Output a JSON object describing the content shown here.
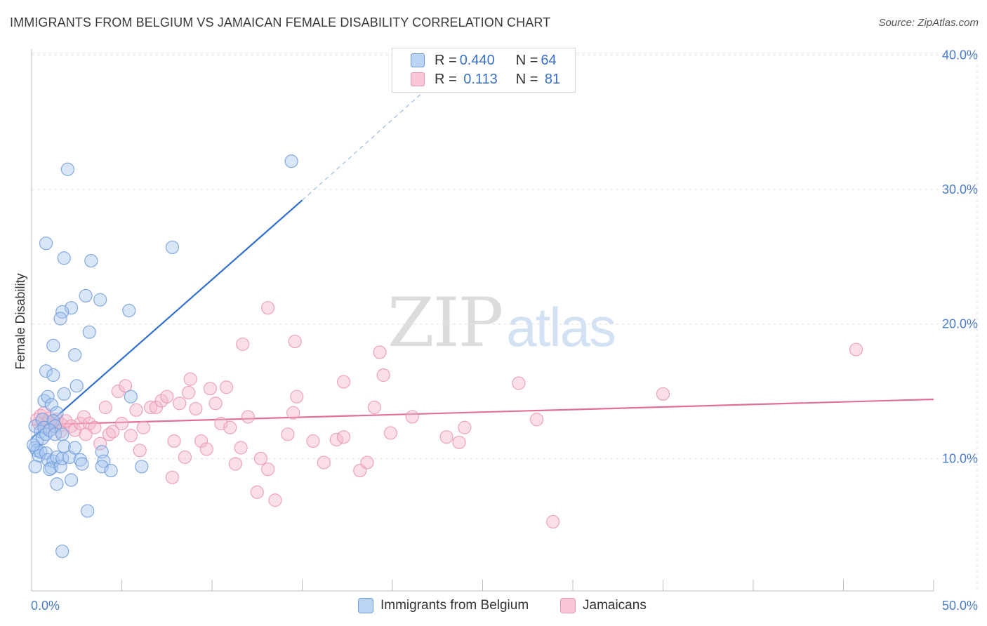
{
  "title": "IMMIGRANTS FROM BELGIUM VS JAMAICAN FEMALE DISABILITY CORRELATION CHART",
  "source": "Source: ZipAtlas.com",
  "watermark": {
    "zip": "ZIP",
    "atlas": "atlas"
  },
  "colors": {
    "blue": "#4a86d8",
    "blue_fill": "#a9c8f0",
    "pink": "#e0709a",
    "pink_fill": "#f5b9cc",
    "tick_text": "#4a7cc8",
    "grid": "#e3e3e3"
  },
  "legend": {
    "rows": [
      {
        "r_label": "R = ",
        "r_value": "0.440",
        "n_label": "N = ",
        "n_value": "64"
      },
      {
        "r_label": "R = ",
        "r_value": " 0.113",
        "n_label": "N = ",
        "n_value": " 81"
      }
    ]
  },
  "bottom_legend": [
    "Immigrants from Belgium",
    "Jamaicans"
  ],
  "chart_data": {
    "type": "scatter",
    "title": "IMMIGRANTS FROM BELGIUM VS JAMAICAN FEMALE DISABILITY CORRELATION CHART",
    "ylabel": "Female Disability",
    "xlabel": "",
    "xlim": [
      0,
      50
    ],
    "ylim": [
      0,
      42
    ],
    "x_tick_labels": [
      "0.0%",
      "50.0%"
    ],
    "y_ticks": [
      10,
      20,
      30,
      40
    ],
    "y_tick_labels": [
      "10.0%",
      "20.0%",
      "30.0%",
      "40.0%"
    ],
    "grid": true,
    "legend_position": "top-center",
    "series": [
      {
        "name": "Immigrants from Belgium",
        "color": "#4a86d8",
        "R": 0.44,
        "N": 64,
        "trend": {
          "x": [
            0.0,
            15.0
          ],
          "y": [
            11.5,
            29.2
          ],
          "dashed_to": [
            22.5,
            38.2
          ]
        },
        "points": [
          [
            0.2,
            12.4
          ],
          [
            0.3,
            11.3
          ],
          [
            0.2,
            10.8
          ],
          [
            0.3,
            10.6
          ],
          [
            0.4,
            10.2
          ],
          [
            0.2,
            9.4
          ],
          [
            0.5,
            12.0
          ],
          [
            0.6,
            12.9
          ],
          [
            0.7,
            12.3
          ],
          [
            0.6,
            11.5
          ],
          [
            0.8,
            11.8
          ],
          [
            0.5,
            10.5
          ],
          [
            0.8,
            10.4
          ],
          [
            0.9,
            9.9
          ],
          [
            0.7,
            14.3
          ],
          [
            0.9,
            14.6
          ],
          [
            1.1,
            14.0
          ],
          [
            1.4,
            13.4
          ],
          [
            1.2,
            12.8
          ],
          [
            1.3,
            12.4
          ],
          [
            1.0,
            12.1
          ],
          [
            1.3,
            11.8
          ],
          [
            1.1,
            9.3
          ],
          [
            1.2,
            9.8
          ],
          [
            1.0,
            9.2
          ],
          [
            1.4,
            10.1
          ],
          [
            1.6,
            9.4
          ],
          [
            1.7,
            10.0
          ],
          [
            1.7,
            11.8
          ],
          [
            1.4,
            8.1
          ],
          [
            1.8,
            10.9
          ],
          [
            2.1,
            10.1
          ],
          [
            2.2,
            8.4
          ],
          [
            2.4,
            10.8
          ],
          [
            2.7,
            9.9
          ],
          [
            2.8,
            9.6
          ],
          [
            3.1,
            6.1
          ],
          [
            1.7,
            3.1
          ],
          [
            0.8,
            26.0
          ],
          [
            1.8,
            24.9
          ],
          [
            2.0,
            31.5
          ],
          [
            3.3,
            24.7
          ],
          [
            3.0,
            22.1
          ],
          [
            3.8,
            21.8
          ],
          [
            2.2,
            21.2
          ],
          [
            1.7,
            20.9
          ],
          [
            1.6,
            20.4
          ],
          [
            3.2,
            19.4
          ],
          [
            1.2,
            18.4
          ],
          [
            2.4,
            17.7
          ],
          [
            0.8,
            16.5
          ],
          [
            1.2,
            16.2
          ],
          [
            2.5,
            15.4
          ],
          [
            1.8,
            14.8
          ],
          [
            3.9,
            10.5
          ],
          [
            4.0,
            9.8
          ],
          [
            3.9,
            9.4
          ],
          [
            4.4,
            9.1
          ],
          [
            5.5,
            14.6
          ],
          [
            6.1,
            9.4
          ],
          [
            5.4,
            21.0
          ],
          [
            7.8,
            25.7
          ],
          [
            14.4,
            32.1
          ],
          [
            0.1,
            11.0
          ]
        ]
      },
      {
        "name": "Jamaicans",
        "color": "#e0709a",
        "R": 0.113,
        "N": 81,
        "trend": {
          "x": [
            0.0,
            50.0
          ],
          "y": [
            12.5,
            14.4
          ]
        },
        "points": [
          [
            0.3,
            12.9
          ],
          [
            0.4,
            12.6
          ],
          [
            0.5,
            13.2
          ],
          [
            0.7,
            13.4
          ],
          [
            0.8,
            12.3
          ],
          [
            1.0,
            13.0
          ],
          [
            1.2,
            12.6
          ],
          [
            1.4,
            12.9
          ],
          [
            1.7,
            12.5
          ],
          [
            1.9,
            12.8
          ],
          [
            2.2,
            12.4
          ],
          [
            2.4,
            12.1
          ],
          [
            2.7,
            12.6
          ],
          [
            2.9,
            13.1
          ],
          [
            3.2,
            12.6
          ],
          [
            3.5,
            12.3
          ],
          [
            3.8,
            11.1
          ],
          [
            4.1,
            13.8
          ],
          [
            4.3,
            11.8
          ],
          [
            4.5,
            12.0
          ],
          [
            4.8,
            15.0
          ],
          [
            5.2,
            15.4
          ],
          [
            5.0,
            12.6
          ],
          [
            5.5,
            11.7
          ],
          [
            5.8,
            13.6
          ],
          [
            6.0,
            10.6
          ],
          [
            6.2,
            12.3
          ],
          [
            6.6,
            13.8
          ],
          [
            6.9,
            13.8
          ],
          [
            7.2,
            14.3
          ],
          [
            7.5,
            14.6
          ],
          [
            7.8,
            8.6
          ],
          [
            7.9,
            11.3
          ],
          [
            8.2,
            14.1
          ],
          [
            8.5,
            10.1
          ],
          [
            8.7,
            14.9
          ],
          [
            8.8,
            15.9
          ],
          [
            9.1,
            13.7
          ],
          [
            9.4,
            11.3
          ],
          [
            9.7,
            10.7
          ],
          [
            9.9,
            15.2
          ],
          [
            10.2,
            14.1
          ],
          [
            10.5,
            12.6
          ],
          [
            10.8,
            15.3
          ],
          [
            11.0,
            12.3
          ],
          [
            11.3,
            9.6
          ],
          [
            11.6,
            10.8
          ],
          [
            12.0,
            13.1
          ],
          [
            11.7,
            18.5
          ],
          [
            12.5,
            7.5
          ],
          [
            12.7,
            10.0
          ],
          [
            13.1,
            9.2
          ],
          [
            13.1,
            21.2
          ],
          [
            13.5,
            6.9
          ],
          [
            14.2,
            11.8
          ],
          [
            14.5,
            13.4
          ],
          [
            14.6,
            18.7
          ],
          [
            14.7,
            14.6
          ],
          [
            15.6,
            11.3
          ],
          [
            16.2,
            9.7
          ],
          [
            16.9,
            11.4
          ],
          [
            17.3,
            11.6
          ],
          [
            17.3,
            15.7
          ],
          [
            18.2,
            9.1
          ],
          [
            18.6,
            9.7
          ],
          [
            19.0,
            13.8
          ],
          [
            19.3,
            17.9
          ],
          [
            19.5,
            16.2
          ],
          [
            19.9,
            11.9
          ],
          [
            21.1,
            13.1
          ],
          [
            23.0,
            11.6
          ],
          [
            23.7,
            11.2
          ],
          [
            24.0,
            12.3
          ],
          [
            27.0,
            15.6
          ],
          [
            28.0,
            12.9
          ],
          [
            28.9,
            5.3
          ],
          [
            35.0,
            14.8
          ],
          [
            45.7,
            18.1
          ],
          [
            1.6,
            12.0
          ],
          [
            0.9,
            12.7
          ],
          [
            3.0,
            11.8
          ]
        ]
      }
    ]
  }
}
